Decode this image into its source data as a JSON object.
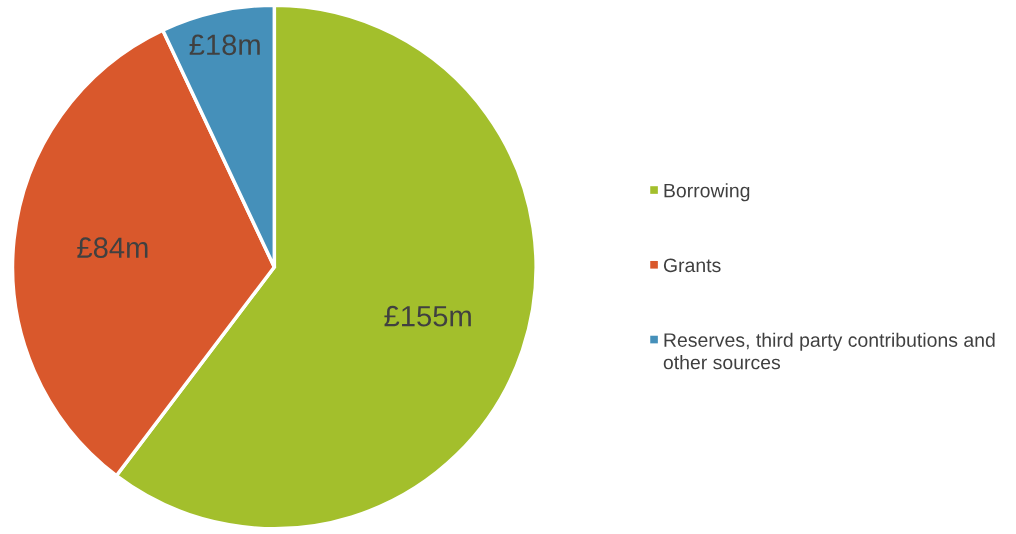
{
  "chart_data": {
    "type": "pie",
    "categories": [
      "Borrowing",
      "Grants",
      "Reserves, third party contributions and other sources"
    ],
    "values": [
      155,
      84,
      18
    ],
    "colors": [
      "#a3bf2c",
      "#d9582c",
      "#4590ba"
    ],
    "value_labels": [
      "£155m",
      "£84m",
      "£18m"
    ],
    "legend": "right"
  }
}
